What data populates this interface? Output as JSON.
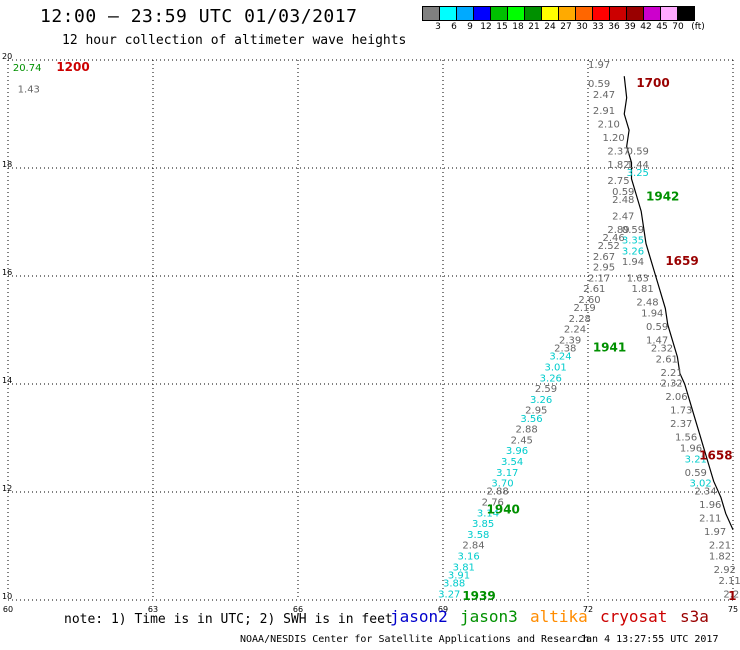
{
  "title": "12:00 – 23:59 UTC 01/03/2017",
  "subtitle": "12 hour collection of altimeter wave heights",
  "legend": {
    "colors": [
      "#808080",
      "#00ffff",
      "#00aaff",
      "#0000ff",
      "#00c000",
      "#00ff00",
      "#009000",
      "#ffff00",
      "#ffaa00",
      "#ff6600",
      "#ff0000",
      "#cc0000",
      "#990000",
      "#cc00cc",
      "#ffaaff",
      "#000000"
    ],
    "labels": [
      "3",
      "6",
      "9",
      "12",
      "15",
      "18",
      "21",
      "24",
      "27",
      "30",
      "33",
      "36",
      "39",
      "42",
      "45",
      "70",
      "(ft)"
    ]
  },
  "note": "note: 1) Time is in UTC; 2) SWH is in feet",
  "satellites": [
    {
      "name": "jason2",
      "color": "#0000cc"
    },
    {
      "name": "jason3",
      "color": "#009000"
    },
    {
      "name": "altika",
      "color": "#ff8c00"
    },
    {
      "name": "cryosat",
      "color": "#cc0000"
    },
    {
      "name": "s3a",
      "color": "#990000"
    }
  ],
  "footer": "NOAA/NESDIS Center for Satellite Applications and Research",
  "footer_time": "Jan  4 13:27:55 UTC 2017",
  "chart_data": {
    "type": "scatter",
    "xlim": [
      60,
      75
    ],
    "ylim": [
      10,
      20
    ],
    "xticks": [
      "60",
      "63",
      "66",
      "69",
      "72",
      "75"
    ],
    "yticks": [
      "10",
      "12",
      "14",
      "16",
      "18",
      "20"
    ],
    "grid": true,
    "time_labels": [
      {
        "text": "1200",
        "x": 61.0,
        "y": 19.8,
        "color": "#cc0000"
      },
      {
        "text": "1700",
        "x": 73.0,
        "y": 19.5,
        "color": "#990000"
      },
      {
        "text": "1942",
        "x": 73.2,
        "y": 17.4,
        "color": "#009000"
      },
      {
        "text": "1659",
        "x": 73.6,
        "y": 16.2,
        "color": "#990000"
      },
      {
        "text": "1941",
        "x": 72.1,
        "y": 14.6,
        "color": "#009000"
      },
      {
        "text": "1658",
        "x": 74.3,
        "y": 12.6,
        "color": "#990000"
      },
      {
        "text": "1940",
        "x": 69.9,
        "y": 11.6,
        "color": "#009000"
      },
      {
        "text": "1939",
        "x": 69.4,
        "y": 10.0,
        "color": "#009000"
      },
      {
        "text": "1",
        "x": 74.9,
        "y": 10.0,
        "color": "#990000"
      }
    ],
    "wave_labels": [
      {
        "text": "20.74",
        "x": 60.1,
        "y": 19.8,
        "color": "#009000"
      },
      {
        "text": "1.43",
        "x": 60.2,
        "y": 19.4,
        "color": "#666666"
      },
      {
        "text": "1.97",
        "x": 72.0,
        "y": 19.85,
        "color": "#666666"
      },
      {
        "text": "0.59",
        "x": 72.0,
        "y": 19.5,
        "color": "#666666"
      },
      {
        "text": "2.47",
        "x": 72.1,
        "y": 19.3,
        "color": "#666666"
      },
      {
        "text": "2.91",
        "x": 72.1,
        "y": 19.0,
        "color": "#666666"
      },
      {
        "text": "2.10",
        "x": 72.2,
        "y": 18.75,
        "color": "#666666"
      },
      {
        "text": "1.20",
        "x": 72.3,
        "y": 18.5,
        "color": "#666666"
      },
      {
        "text": "2.37",
        "x": 72.4,
        "y": 18.25,
        "color": "#666666"
      },
      {
        "text": "0.59",
        "x": 72.8,
        "y": 18.25,
        "color": "#666666"
      },
      {
        "text": "1.82",
        "x": 72.4,
        "y": 18.0,
        "color": "#666666"
      },
      {
        "text": "1.44",
        "x": 72.8,
        "y": 18.0,
        "color": "#666666"
      },
      {
        "text": "3.25",
        "x": 72.8,
        "y": 17.85,
        "color": "#00cccc"
      },
      {
        "text": "2.75",
        "x": 72.4,
        "y": 17.7,
        "color": "#666666"
      },
      {
        "text": "0.59",
        "x": 72.5,
        "y": 17.5,
        "color": "#666666"
      },
      {
        "text": "2.48",
        "x": 72.5,
        "y": 17.35,
        "color": "#666666"
      },
      {
        "text": "2.47",
        "x": 72.5,
        "y": 17.05,
        "color": "#666666"
      },
      {
        "text": "2.89",
        "x": 72.4,
        "y": 16.8,
        "color": "#666666"
      },
      {
        "text": "0.59",
        "x": 72.7,
        "y": 16.8,
        "color": "#666666"
      },
      {
        "text": "2.46",
        "x": 72.3,
        "y": 16.65,
        "color": "#666666"
      },
      {
        "text": "3.35",
        "x": 72.7,
        "y": 16.6,
        "color": "#00cccc"
      },
      {
        "text": "2.52",
        "x": 72.2,
        "y": 16.5,
        "color": "#666666"
      },
      {
        "text": "3.26",
        "x": 72.7,
        "y": 16.4,
        "color": "#00cccc"
      },
      {
        "text": "2.67",
        "x": 72.1,
        "y": 16.3,
        "color": "#666666"
      },
      {
        "text": "1.94",
        "x": 72.7,
        "y": 16.2,
        "color": "#666666"
      },
      {
        "text": "2.95",
        "x": 72.1,
        "y": 16.1,
        "color": "#666666"
      },
      {
        "text": "2.17",
        "x": 72.0,
        "y": 15.9,
        "color": "#666666"
      },
      {
        "text": "1.63",
        "x": 72.8,
        "y": 15.9,
        "color": "#666666"
      },
      {
        "text": "2.61",
        "x": 71.9,
        "y": 15.7,
        "color": "#666666"
      },
      {
        "text": "1.81",
        "x": 72.9,
        "y": 15.7,
        "color": "#666666"
      },
      {
        "text": "2.60",
        "x": 71.8,
        "y": 15.5,
        "color": "#666666"
      },
      {
        "text": "2.48",
        "x": 73.0,
        "y": 15.45,
        "color": "#666666"
      },
      {
        "text": "2.19",
        "x": 71.7,
        "y": 15.35,
        "color": "#666666"
      },
      {
        "text": "2.28",
        "x": 71.6,
        "y": 15.15,
        "color": "#666666"
      },
      {
        "text": "1.94",
        "x": 73.1,
        "y": 15.25,
        "color": "#666666"
      },
      {
        "text": "2.24",
        "x": 71.5,
        "y": 14.95,
        "color": "#666666"
      },
      {
        "text": "0.59",
        "x": 73.2,
        "y": 15.0,
        "color": "#666666"
      },
      {
        "text": "2.39",
        "x": 71.4,
        "y": 14.75,
        "color": "#666666"
      },
      {
        "text": "1.47",
        "x": 73.2,
        "y": 14.75,
        "color": "#666666"
      },
      {
        "text": "2.38",
        "x": 71.3,
        "y": 14.6,
        "color": "#666666"
      },
      {
        "text": "2.32",
        "x": 73.3,
        "y": 14.6,
        "color": "#666666"
      },
      {
        "text": "3.24",
        "x": 71.2,
        "y": 14.45,
        "color": "#00cccc"
      },
      {
        "text": "2.61",
        "x": 73.4,
        "y": 14.4,
        "color": "#666666"
      },
      {
        "text": "3.01",
        "x": 71.1,
        "y": 14.25,
        "color": "#00cccc"
      },
      {
        "text": "2.21",
        "x": 73.5,
        "y": 14.15,
        "color": "#666666"
      },
      {
        "text": "3.26",
        "x": 71.0,
        "y": 14.05,
        "color": "#00cccc"
      },
      {
        "text": "2.32",
        "x": 73.5,
        "y": 13.95,
        "color": "#666666"
      },
      {
        "text": "2.59",
        "x": 70.9,
        "y": 13.85,
        "color": "#666666"
      },
      {
        "text": "3.26",
        "x": 70.8,
        "y": 13.65,
        "color": "#00cccc"
      },
      {
        "text": "2.06",
        "x": 73.6,
        "y": 13.7,
        "color": "#666666"
      },
      {
        "text": "2.95",
        "x": 70.7,
        "y": 13.45,
        "color": "#666666"
      },
      {
        "text": "1.73",
        "x": 73.7,
        "y": 13.45,
        "color": "#666666"
      },
      {
        "text": "3.56",
        "x": 70.6,
        "y": 13.3,
        "color": "#00cccc"
      },
      {
        "text": "2.37",
        "x": 73.7,
        "y": 13.2,
        "color": "#666666"
      },
      {
        "text": "2.88",
        "x": 70.5,
        "y": 13.1,
        "color": "#666666"
      },
      {
        "text": "1.56",
        "x": 73.8,
        "y": 12.95,
        "color": "#666666"
      },
      {
        "text": "2.45",
        "x": 70.4,
        "y": 12.9,
        "color": "#666666"
      },
      {
        "text": "1.96",
        "x": 73.9,
        "y": 12.75,
        "color": "#666666"
      },
      {
        "text": "3.96",
        "x": 70.3,
        "y": 12.7,
        "color": "#00cccc"
      },
      {
        "text": "3.21",
        "x": 74.0,
        "y": 12.55,
        "color": "#00cccc"
      },
      {
        "text": "3.54",
        "x": 70.2,
        "y": 12.5,
        "color": "#00cccc"
      },
      {
        "text": "0.59",
        "x": 74.0,
        "y": 12.3,
        "color": "#666666"
      },
      {
        "text": "3.17",
        "x": 70.1,
        "y": 12.3,
        "color": "#00cccc"
      },
      {
        "text": "3.02",
        "x": 74.1,
        "y": 12.1,
        "color": "#00cccc"
      },
      {
        "text": "3.70",
        "x": 70.0,
        "y": 12.1,
        "color": "#00cccc"
      },
      {
        "text": "2.88",
        "x": 69.9,
        "y": 11.95,
        "color": "#666666"
      },
      {
        "text": "2.34",
        "x": 74.2,
        "y": 11.95,
        "color": "#666666"
      },
      {
        "text": "2.76",
        "x": 69.8,
        "y": 11.75,
        "color": "#666666"
      },
      {
        "text": "1.96",
        "x": 74.3,
        "y": 11.7,
        "color": "#666666"
      },
      {
        "text": "3.14",
        "x": 69.7,
        "y": 11.55,
        "color": "#00cccc"
      },
      {
        "text": "2.11",
        "x": 74.3,
        "y": 11.45,
        "color": "#666666"
      },
      {
        "text": "3.85",
        "x": 69.6,
        "y": 11.35,
        "color": "#00cccc"
      },
      {
        "text": "1.97",
        "x": 74.4,
        "y": 11.2,
        "color": "#666666"
      },
      {
        "text": "3.58",
        "x": 69.5,
        "y": 11.15,
        "color": "#00cccc"
      },
      {
        "text": "2.21",
        "x": 74.5,
        "y": 10.95,
        "color": "#666666"
      },
      {
        "text": "2.84",
        "x": 69.4,
        "y": 10.95,
        "color": "#666666"
      },
      {
        "text": "1.82",
        "x": 74.5,
        "y": 10.75,
        "color": "#666666"
      },
      {
        "text": "3.16",
        "x": 69.3,
        "y": 10.75,
        "color": "#00cccc"
      },
      {
        "text": "2.92",
        "x": 74.6,
        "y": 10.5,
        "color": "#666666"
      },
      {
        "text": "3.81",
        "x": 69.2,
        "y": 10.55,
        "color": "#00cccc"
      },
      {
        "text": "3.91",
        "x": 69.1,
        "y": 10.4,
        "color": "#00cccc"
      },
      {
        "text": "2.11",
        "x": 74.7,
        "y": 10.3,
        "color": "#666666"
      },
      {
        "text": "3.88",
        "x": 69.0,
        "y": 10.25,
        "color": "#00cccc"
      },
      {
        "text": "3.27",
        "x": 68.9,
        "y": 10.05,
        "color": "#00cccc"
      },
      {
        "text": "2.23",
        "x": 74.8,
        "y": 10.05,
        "color": "#666666"
      }
    ],
    "coastline": [
      [
        72.75,
        19.7
      ],
      [
        72.8,
        19.3
      ],
      [
        72.75,
        19.0
      ],
      [
        72.85,
        18.7
      ],
      [
        72.8,
        18.4
      ],
      [
        72.9,
        18.1
      ],
      [
        72.9,
        17.8
      ],
      [
        73.0,
        17.5
      ],
      [
        73.1,
        17.2
      ],
      [
        73.15,
        16.9
      ],
      [
        73.2,
        16.6
      ],
      [
        73.3,
        16.3
      ],
      [
        73.4,
        16.0
      ],
      [
        73.5,
        15.7
      ],
      [
        73.6,
        15.4
      ],
      [
        73.65,
        15.1
      ],
      [
        73.75,
        14.8
      ],
      [
        73.85,
        14.5
      ],
      [
        73.9,
        14.2
      ],
      [
        74.0,
        14.0
      ],
      [
        74.1,
        13.7
      ],
      [
        74.2,
        13.4
      ],
      [
        74.3,
        13.1
      ],
      [
        74.4,
        12.8
      ],
      [
        74.5,
        12.5
      ],
      [
        74.6,
        12.2
      ],
      [
        74.75,
        11.9
      ],
      [
        74.85,
        11.6
      ],
      [
        75.0,
        11.3
      ]
    ]
  }
}
